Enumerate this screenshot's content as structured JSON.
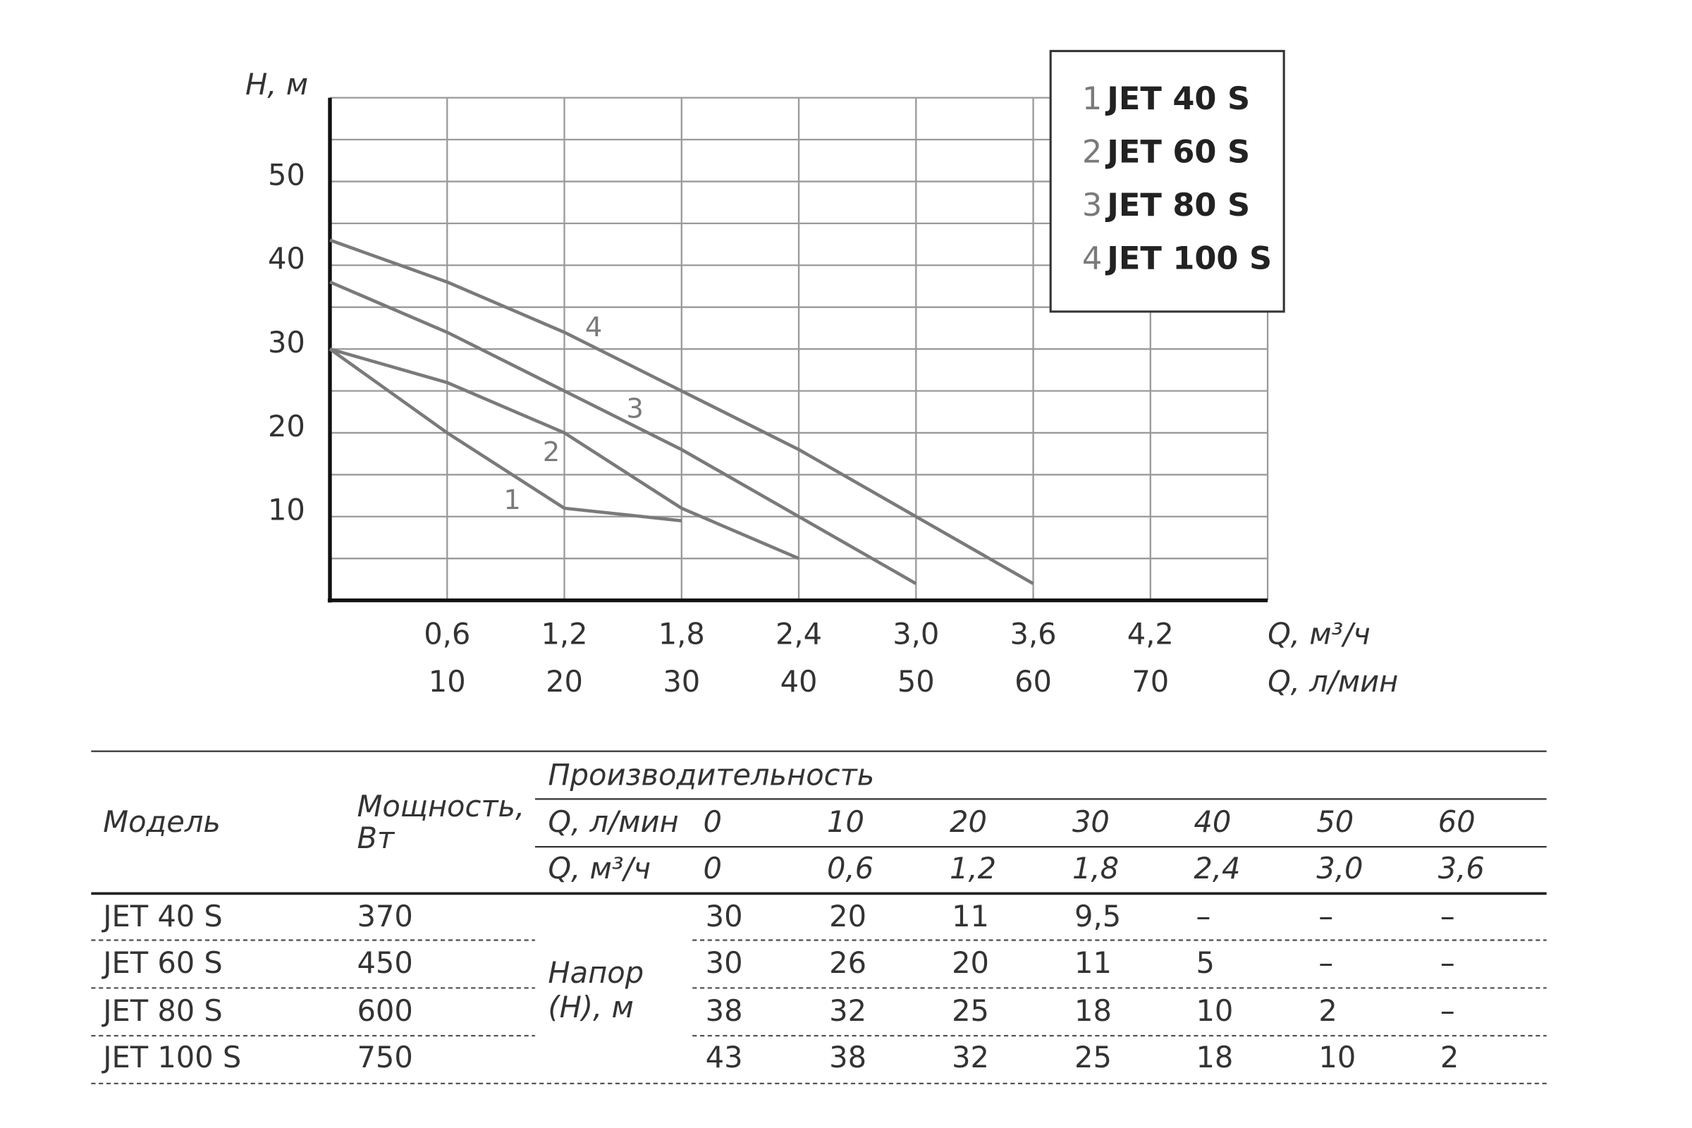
{
  "chart_data": {
    "type": "line",
    "y_label": "H, м",
    "x_label": "Q, л/мин",
    "x2_label": "Q, м³/ч",
    "x": [
      0,
      10,
      20,
      30,
      40,
      50,
      60
    ],
    "xlim": [
      0,
      80
    ],
    "xticks": [
      10,
      20,
      30,
      40,
      50,
      60,
      70
    ],
    "x2lim": [
      0,
      4.8
    ],
    "x2ticks": [
      {
        "value": 0.6,
        "label": "0,6"
      },
      {
        "value": 1.2,
        "label": "1,2"
      },
      {
        "value": 1.8,
        "label": "1,8"
      },
      {
        "value": 2.4,
        "label": "2,4"
      },
      {
        "value": 3.0,
        "label": "3,0"
      },
      {
        "value": 3.6,
        "label": "3,6"
      },
      {
        "value": 4.2,
        "label": "4,2"
      }
    ],
    "ylim": [
      0,
      60
    ],
    "yticks": [
      10,
      20,
      30,
      40,
      50
    ],
    "y_minor_ticks": [
      5,
      15,
      25,
      35,
      45,
      55
    ],
    "grid": true,
    "legend": "top-right",
    "series": [
      {
        "name": "JET 40 S",
        "label": "1",
        "color": "#7a7a7a",
        "values": [
          30,
          20,
          11,
          9.5,
          null,
          null,
          null
        ]
      },
      {
        "name": "JET 60 S",
        "label": "2",
        "color": "#7a7a7a",
        "values": [
          30,
          26,
          20,
          11,
          5,
          null,
          null
        ]
      },
      {
        "name": "JET 80 S",
        "label": "3",
        "color": "#7a7a7a",
        "values": [
          38,
          32,
          25,
          18,
          10,
          2,
          null
        ]
      },
      {
        "name": "JET 100 S",
        "label": "4",
        "color": "#7a7a7a",
        "values": [
          43,
          38,
          32,
          25,
          18,
          10,
          2
        ]
      }
    ]
  },
  "table": {
    "header": {
      "model": "Модель",
      "power": [
        "Мощность,",
        "Вт"
      ],
      "performance": "Производительность",
      "flow_lpm_label": "Q, л/мин",
      "flow_lpm": [
        "0",
        "10",
        "20",
        "30",
        "40",
        "50",
        "60"
      ],
      "flow_m3h_label": "Q, м³/ч",
      "flow_m3h": [
        "0",
        "0,6",
        "1,2",
        "1,8",
        "2,4",
        "3,0",
        "3,6"
      ],
      "head_label": [
        "Напор",
        "(Н), м"
      ]
    },
    "rows": [
      {
        "model": "JET 40 S",
        "power": "370",
        "head": [
          "30",
          "20",
          "11",
          "9,5",
          "–",
          "–",
          "–"
        ]
      },
      {
        "model": "JET 60 S",
        "power": "450",
        "head": [
          "30",
          "26",
          "20",
          "11",
          "5",
          "–",
          "–"
        ]
      },
      {
        "model": "JET 80 S",
        "power": "600",
        "head": [
          "38",
          "32",
          "25",
          "18",
          "10",
          "2",
          "–"
        ]
      },
      {
        "model": "JET 100 S",
        "power": "750",
        "head": [
          "43",
          "38",
          "32",
          "25",
          "18",
          "10",
          "2"
        ]
      }
    ]
  }
}
